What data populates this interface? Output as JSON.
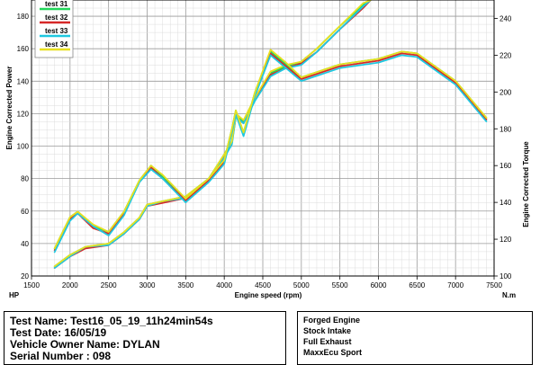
{
  "chart_data": {
    "type": "line",
    "xlabel": "Engine speed (rpm)",
    "x_unit": "HP",
    "y2_unit": "N.m",
    "ylabel": "Engine Corrected Power",
    "y2label": "Engine Corrected Torque",
    "xlim": [
      1500,
      7500
    ],
    "ylim": [
      20,
      190
    ],
    "y2lim": [
      100,
      250
    ],
    "x_ticks": [
      1500,
      2000,
      2500,
      3000,
      3500,
      4000,
      4500,
      5000,
      5500,
      6000,
      6500,
      7000,
      7500
    ],
    "y_ticks": [
      20,
      40,
      60,
      80,
      100,
      120,
      140,
      160,
      180
    ],
    "y2_ticks": [
      100,
      120,
      140,
      160,
      180,
      200,
      220,
      240
    ],
    "grid": true,
    "legend_position": "top-left",
    "legend": [
      "test 31",
      "test 32",
      "test 33",
      "test 34"
    ],
    "series": [
      {
        "name": "test 31",
        "color": "#22d65a",
        "axis": "power",
        "x": [
          1800,
          2000,
          2200,
          2500,
          2700,
          2900,
          3000,
          3200,
          3500,
          3800,
          4000,
          4100,
          4150,
          4250,
          4400,
          4600,
          4800,
          5000,
          5200,
          5500,
          5800,
          5900
        ],
        "y": [
          26,
          33,
          38,
          40,
          47,
          56,
          64,
          66,
          69,
          80,
          95,
          103,
          119,
          115,
          130,
          145,
          149,
          152,
          160,
          174,
          187,
          190
        ]
      },
      {
        "name": "test 32",
        "color": "#d62828",
        "axis": "power",
        "x": [
          1800,
          2000,
          2200,
          2500,
          2700,
          2900,
          3000,
          3200,
          3500,
          3800,
          4000,
          4100,
          4150,
          4250,
          4400,
          4600,
          4800,
          5000,
          5200,
          5500,
          5800,
          5900
        ],
        "y": [
          25,
          32,
          37,
          39,
          46,
          55,
          63,
          65,
          68,
          79,
          94,
          102,
          118,
          114,
          129,
          144,
          148,
          151,
          158,
          172,
          185,
          190
        ]
      },
      {
        "name": "test 33",
        "color": "#1ec8e0",
        "axis": "power",
        "x": [
          1800,
          2000,
          2200,
          2500,
          2700,
          2900,
          3000,
          3200,
          3500,
          3800,
          4000,
          4100,
          4150,
          4250,
          4400,
          4600,
          4800,
          5000,
          5200,
          5500,
          5800,
          5900
        ],
        "y": [
          25,
          32,
          38,
          39,
          46,
          55,
          63,
          66,
          68,
          79,
          93,
          101,
          118,
          114,
          128,
          143,
          148,
          150,
          158,
          172,
          186,
          190
        ]
      },
      {
        "name": "test 34",
        "color": "#e8e020",
        "axis": "power",
        "x": [
          1800,
          2000,
          2200,
          2500,
          2700,
          2900,
          3000,
          3200,
          3500,
          3800,
          4000,
          4100,
          4150,
          4250,
          4400,
          4600,
          4800,
          5000,
          5200,
          5500,
          5800,
          5900
        ],
        "y": [
          26,
          33,
          38,
          40,
          47,
          56,
          64,
          66,
          69,
          80,
          95,
          103,
          120,
          116,
          130,
          146,
          150,
          152,
          160,
          174,
          188,
          190
        ]
      },
      {
        "name": "test 31",
        "color": "#22d65a",
        "axis": "torque",
        "x": [
          1800,
          2000,
          2100,
          2300,
          2500,
          2700,
          2900,
          3050,
          3200,
          3500,
          3800,
          4000,
          4100,
          4150,
          4250,
          4400,
          4600,
          4800,
          5000,
          5500,
          6000,
          6300,
          6500,
          7000,
          7400
        ],
        "y": [
          115,
          132,
          135,
          127,
          124,
          135,
          152,
          160,
          154,
          142,
          153,
          163,
          180,
          190,
          178,
          200,
          222,
          215,
          208,
          215,
          218,
          222,
          221,
          206,
          186
        ]
      },
      {
        "name": "test 32",
        "color": "#d62828",
        "axis": "torque",
        "x": [
          1800,
          2000,
          2100,
          2300,
          2500,
          2700,
          2900,
          3050,
          3200,
          3500,
          3800,
          4000,
          4100,
          4150,
          4250,
          4400,
          4600,
          4800,
          5000,
          5500,
          6000,
          6300,
          6500,
          7000,
          7400
        ],
        "y": [
          114,
          131,
          134,
          126,
          123,
          134,
          151,
          159,
          153,
          141,
          152,
          162,
          179,
          189,
          177,
          199,
          221,
          214,
          207,
          214,
          217,
          221,
          220,
          205,
          185
        ]
      },
      {
        "name": "test 33",
        "color": "#1ec8e0",
        "axis": "torque",
        "x": [
          1800,
          2000,
          2100,
          2300,
          2500,
          2700,
          2900,
          3050,
          3200,
          3500,
          3800,
          4000,
          4100,
          4150,
          4250,
          4400,
          4600,
          4800,
          5000,
          5500,
          6000,
          6300,
          6500,
          7000,
          7400
        ],
        "y": [
          113,
          130,
          134,
          127,
          122,
          133,
          151,
          158,
          153,
          140,
          151,
          161,
          178,
          188,
          176,
          198,
          220,
          213,
          206,
          213,
          216,
          220,
          219,
          204,
          184
        ]
      },
      {
        "name": "test 34",
        "color": "#e8e020",
        "axis": "torque",
        "x": [
          1800,
          2000,
          2100,
          2300,
          2500,
          2700,
          2900,
          3050,
          3200,
          3500,
          3800,
          4000,
          4100,
          4150,
          4250,
          4400,
          4600,
          4800,
          5000,
          5500,
          6000,
          6300,
          6500,
          7000,
          7400
        ],
        "y": [
          115,
          132,
          135,
          128,
          124,
          135,
          152,
          160,
          155,
          142,
          153,
          163,
          180,
          190,
          178,
          200,
          223,
          216,
          208,
          215,
          218,
          222,
          221,
          206,
          186
        ]
      }
    ]
  },
  "test_info": {
    "name": "Test Name: Test16_05_19_11h24min54s",
    "date": "Test Date: 16/05/19",
    "owner": "Vehicle Owner Name: DYLAN",
    "serial": "Serial Number : 098"
  },
  "config": {
    "line1": "Forged Engine",
    "line2": "Stock Intake",
    "line3": "Full Exhaust",
    "line4": "MaxxEcu Sport"
  }
}
